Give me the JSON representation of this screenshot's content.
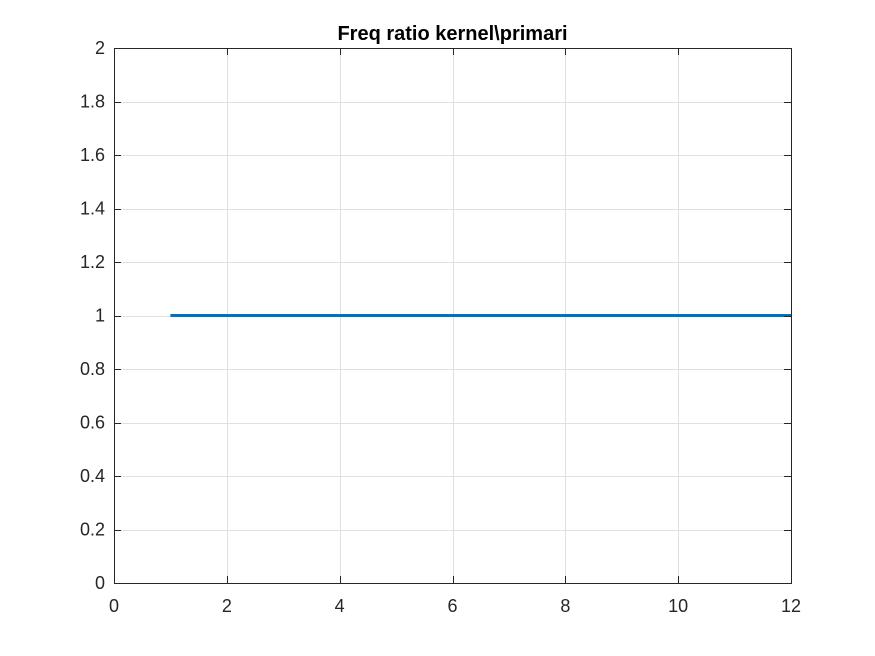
{
  "chart_data": {
    "type": "line",
    "title": "Freq ratio kernel\\primari",
    "xlabel": "",
    "ylabel": "",
    "xlim": [
      0,
      12
    ],
    "ylim": [
      0,
      2
    ],
    "xticks": [
      0,
      2,
      4,
      6,
      8,
      10,
      12
    ],
    "yticks": [
      0,
      0.2,
      0.4,
      0.6,
      0.8,
      1,
      1.2,
      1.4,
      1.6,
      1.8,
      2
    ],
    "xtick_labels": [
      "0",
      "2",
      "4",
      "6",
      "8",
      "10",
      "12"
    ],
    "ytick_labels": [
      "0",
      "0.2",
      "0.4",
      "0.6",
      "0.8",
      "1",
      "1.2",
      "1.4",
      "1.6",
      "1.8",
      "2"
    ],
    "grid": true,
    "series": [
      {
        "color": "#0072BD",
        "x": [
          1,
          2,
          3,
          4,
          5,
          6,
          7,
          8,
          9,
          10,
          11,
          12
        ],
        "y": [
          1,
          1,
          1,
          1,
          1,
          1,
          1,
          1,
          1,
          1,
          1,
          1
        ]
      }
    ]
  }
}
